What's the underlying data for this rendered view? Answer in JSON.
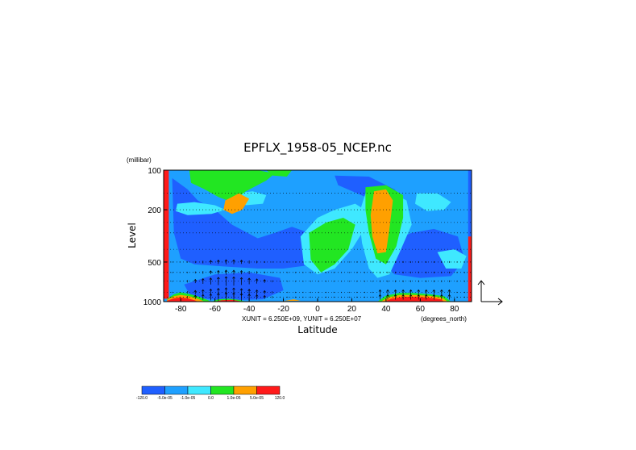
{
  "chart_data": {
    "type": "heatmap",
    "title": "EPFLX_1958-05_NCEP.nc",
    "xlabel": "Latitude",
    "x_units": "(degrees_north)",
    "ylabel": "Level",
    "y_units": "(millibar)",
    "xlim": [
      -90,
      90
    ],
    "ylim": [
      1000,
      100
    ],
    "x_ticks": [
      "-80",
      "-60",
      "-40",
      "-20",
      "0",
      "20",
      "40",
      "60",
      "80"
    ],
    "y_ticks": [
      "100",
      "200",
      "500",
      "1000"
    ],
    "unit_note": "XUNIT = 6.250E+09, YUNIT = 6.250E+07",
    "colorbar": {
      "colors": [
        "#1f5fff",
        "#1ea0ff",
        "#3fe8ff",
        "#22e622",
        "#ffa000",
        "#ff1a1a"
      ],
      "labels": [
        "-120.0",
        "-5.0e-05",
        "-1.0e-05",
        "0.0",
        "1.0e-05",
        "5.0e-05",
        "120.0"
      ]
    },
    "background_level": 1,
    "regions": [
      {
        "level": 0,
        "pts": [
          [
            -85,
            115
          ],
          [
            -76,
            140
          ],
          [
            -70,
            170
          ],
          [
            -60,
            200
          ],
          [
            -50,
            260
          ],
          [
            -35,
            330
          ],
          [
            -25,
            300
          ],
          [
            -15,
            270
          ],
          [
            -5,
            300
          ],
          [
            -2,
            400
          ],
          [
            -6,
            530
          ],
          [
            -20,
            560
          ],
          [
            -35,
            560
          ],
          [
            -55,
            540
          ],
          [
            -72,
            520
          ],
          [
            -80,
            470
          ],
          [
            -84,
            300
          ]
        ]
      },
      {
        "level": 0,
        "pts": [
          [
            40,
            360
          ],
          [
            55,
            300
          ],
          [
            68,
            280
          ],
          [
            82,
            320
          ],
          [
            86,
            480
          ],
          [
            78,
            640
          ],
          [
            60,
            660
          ],
          [
            45,
            620
          ],
          [
            38,
            500
          ]
        ]
      },
      {
        "level": 0,
        "pts": [
          [
            10,
            110
          ],
          [
            30,
            112
          ],
          [
            45,
            140
          ],
          [
            52,
            180
          ],
          [
            48,
            200
          ],
          [
            42,
            175
          ],
          [
            28,
            160
          ],
          [
            12,
            130
          ]
        ]
      },
      {
        "level": 1,
        "pts": [
          [
            -80,
            620
          ],
          [
            -60,
            580
          ],
          [
            -40,
            580
          ],
          [
            -20,
            600
          ],
          [
            0,
            660
          ],
          [
            20,
            700
          ],
          [
            35,
            720
          ],
          [
            20,
            860
          ],
          [
            0,
            900
          ],
          [
            -30,
            900
          ],
          [
            -60,
            880
          ],
          [
            -80,
            760
          ]
        ]
      },
      {
        "level": 0,
        "pts": [
          [
            -78,
            740
          ],
          [
            -60,
            620
          ],
          [
            -40,
            600
          ],
          [
            -22,
            660
          ],
          [
            -20,
            820
          ],
          [
            -32,
            960
          ],
          [
            -55,
            980
          ],
          [
            -74,
            930
          ]
        ]
      },
      {
        "level": 2,
        "pts": [
          [
            -82,
            180
          ],
          [
            -72,
            175
          ],
          [
            -60,
            185
          ],
          [
            -54,
            200
          ],
          [
            -62,
            215
          ],
          [
            -76,
            220
          ],
          [
            -83,
            205
          ]
        ]
      },
      {
        "level": 2,
        "pts": [
          [
            -48,
            150
          ],
          [
            -38,
            145
          ],
          [
            -30,
            155
          ],
          [
            -32,
            180
          ],
          [
            -42,
            185
          ]
        ]
      },
      {
        "level": 2,
        "pts": [
          [
            -10,
            320
          ],
          [
            0,
            230
          ],
          [
            10,
            200
          ],
          [
            22,
            180
          ],
          [
            30,
            210
          ],
          [
            26,
            300
          ],
          [
            20,
            400
          ],
          [
            10,
            560
          ],
          [
            0,
            620
          ],
          [
            -8,
            520
          ]
        ]
      },
      {
        "level": 2,
        "pts": [
          [
            28,
            150
          ],
          [
            40,
            140
          ],
          [
            52,
            170
          ],
          [
            55,
            260
          ],
          [
            48,
            420
          ],
          [
            42,
            620
          ],
          [
            35,
            660
          ],
          [
            30,
            560
          ],
          [
            26,
            360
          ],
          [
            24,
            220
          ]
        ]
      },
      {
        "level": 2,
        "pts": [
          [
            58,
            150
          ],
          [
            70,
            150
          ],
          [
            78,
            175
          ],
          [
            74,
            200
          ],
          [
            64,
            205
          ],
          [
            57,
            180
          ]
        ]
      },
      {
        "level": 2,
        "pts": [
          [
            70,
            420
          ],
          [
            80,
            400
          ],
          [
            87,
            450
          ],
          [
            84,
            560
          ],
          [
            75,
            560
          ]
        ]
      },
      {
        "level": 3,
        "pts": [
          [
            -75,
            100
          ],
          [
            -55,
            100
          ],
          [
            -35,
            100
          ],
          [
            -25,
            106
          ],
          [
            -30,
            120
          ],
          [
            -42,
            145
          ],
          [
            -50,
            175
          ],
          [
            -58,
            160
          ],
          [
            -66,
            140
          ],
          [
            -74,
            125
          ]
        ]
      },
      {
        "level": 3,
        "pts": [
          [
            -30,
            100
          ],
          [
            -15,
            100
          ],
          [
            -18,
            112
          ],
          [
            -26,
            110
          ]
        ]
      },
      {
        "level": 3,
        "pts": [
          [
            -5,
            300
          ],
          [
            5,
            250
          ],
          [
            15,
            230
          ],
          [
            22,
            260
          ],
          [
            18,
            400
          ],
          [
            10,
            520
          ],
          [
            2,
            600
          ],
          [
            -4,
            480
          ]
        ]
      },
      {
        "level": 3,
        "pts": [
          [
            28,
            135
          ],
          [
            40,
            130
          ],
          [
            50,
            155
          ],
          [
            50,
            230
          ],
          [
            46,
            380
          ],
          [
            40,
            520
          ],
          [
            34,
            470
          ],
          [
            30,
            300
          ],
          [
            28,
            200
          ]
        ]
      },
      {
        "level": 4,
        "pts": [
          [
            -54,
            170
          ],
          [
            -46,
            150
          ],
          [
            -40,
            165
          ],
          [
            -44,
            200
          ],
          [
            -50,
            215
          ],
          [
            -55,
            200
          ]
        ]
      },
      {
        "level": 4,
        "pts": [
          [
            33,
            145
          ],
          [
            40,
            140
          ],
          [
            44,
            170
          ],
          [
            42,
            280
          ],
          [
            40,
            420
          ],
          [
            35,
            430
          ],
          [
            32,
            320
          ],
          [
            31,
            220
          ]
        ]
      },
      {
        "level": 4,
        "pts": [
          [
            -20,
            990
          ],
          [
            -14,
            960
          ],
          [
            -10,
            985
          ]
        ]
      },
      {
        "level": 3,
        "pts": [
          [
            -88,
            950
          ],
          [
            -84,
            880
          ],
          [
            -80,
            850
          ],
          [
            -74,
            880
          ],
          [
            -68,
            930
          ],
          [
            -62,
            1000
          ],
          [
            -88,
            1000
          ]
        ]
      },
      {
        "level": 4,
        "pts": [
          [
            -88,
            970
          ],
          [
            -84,
            910
          ],
          [
            -80,
            890
          ],
          [
            -75,
            910
          ],
          [
            -70,
            950
          ],
          [
            -66,
            1000
          ],
          [
            -88,
            1000
          ]
        ]
      },
      {
        "level": 5,
        "pts": [
          [
            -88,
            985
          ],
          [
            -84,
            945
          ],
          [
            -80,
            930
          ],
          [
            -76,
            945
          ],
          [
            -72,
            975
          ],
          [
            -70,
            1000
          ],
          [
            -88,
            1000
          ]
        ]
      },
      {
        "level": 3,
        "pts": [
          [
            -62,
            1000
          ],
          [
            -58,
            960
          ],
          [
            -52,
            950
          ],
          [
            -46,
            970
          ],
          [
            -42,
            1000
          ]
        ]
      },
      {
        "level": 5,
        "pts": [
          [
            -60,
            1000
          ],
          [
            -56,
            975
          ],
          [
            -50,
            970
          ],
          [
            -46,
            990
          ],
          [
            -44,
            1000
          ]
        ]
      },
      {
        "level": 3,
        "pts": [
          [
            35,
            1000
          ],
          [
            40,
            900
          ],
          [
            48,
            860
          ],
          [
            56,
            860
          ],
          [
            66,
            880
          ],
          [
            74,
            910
          ],
          [
            78,
            1000
          ]
        ]
      },
      {
        "level": 4,
        "pts": [
          [
            37,
            1000
          ],
          [
            41,
            930
          ],
          [
            48,
            890
          ],
          [
            56,
            890
          ],
          [
            66,
            905
          ],
          [
            73,
            935
          ],
          [
            76,
            1000
          ]
        ]
      },
      {
        "level": 5,
        "pts": [
          [
            39,
            1000
          ],
          [
            43,
            950
          ],
          [
            50,
            920
          ],
          [
            58,
            920
          ],
          [
            66,
            935
          ],
          [
            72,
            960
          ],
          [
            74,
            1000
          ]
        ]
      },
      {
        "level": 5,
        "pts": [
          [
            -90,
            100
          ],
          [
            -87,
            100
          ],
          [
            -87,
            950
          ],
          [
            -90,
            950
          ]
        ]
      },
      {
        "level": 0,
        "pts": [
          [
            88,
            100
          ],
          [
            90,
            100
          ],
          [
            90,
            320
          ],
          [
            88,
            320
          ]
        ]
      },
      {
        "level": 5,
        "pts": [
          [
            88,
            320
          ],
          [
            90,
            320
          ],
          [
            90,
            1000
          ],
          [
            88,
            1000
          ]
        ]
      }
    ]
  }
}
